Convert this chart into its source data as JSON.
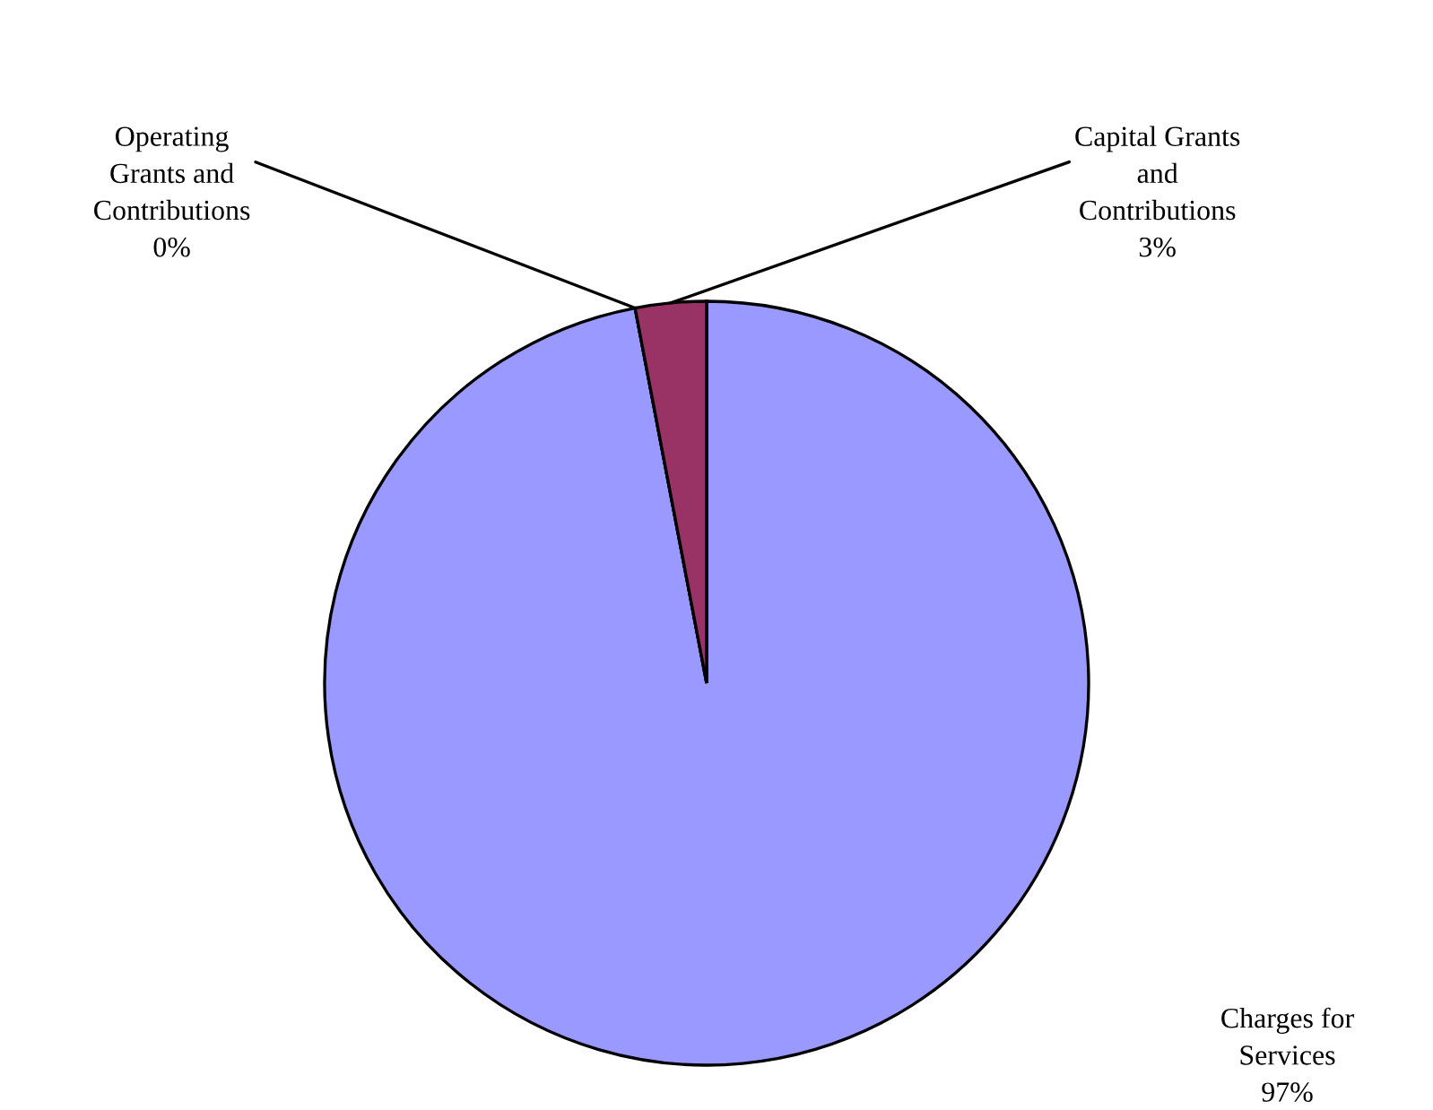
{
  "chart_data": {
    "type": "pie",
    "categories": [
      "Charges for\nServices",
      "Operating\nGrants and\nContributions",
      "Capital Grants\nand\nContributions"
    ],
    "values": [
      97,
      0,
      3
    ],
    "colors": [
      "#9999ff",
      "#ffffcc",
      "#993366"
    ],
    "value_labels": [
      "97%",
      "0%",
      "3%"
    ]
  }
}
